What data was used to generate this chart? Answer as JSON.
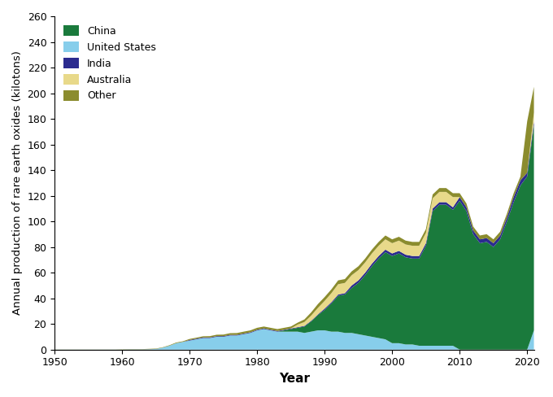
{
  "xlabel": "Year",
  "ylabel": "Annual production of rare earth oxides (kilotons)",
  "ylim": [
    0,
    260
  ],
  "yticks": [
    0,
    20,
    40,
    60,
    80,
    100,
    120,
    140,
    160,
    180,
    200,
    220,
    240,
    260
  ],
  "xlim": [
    1950,
    2021
  ],
  "xticks": [
    1950,
    1960,
    1970,
    1980,
    1990,
    2000,
    2010,
    2020
  ],
  "colors": {
    "United_States": "#87CEEB",
    "China": "#1a7a3c",
    "India": "#2b2b8f",
    "Australia": "#e8d98a",
    "Other": "#8b8c2e"
  },
  "years": [
    1950,
    1951,
    1952,
    1953,
    1954,
    1955,
    1956,
    1957,
    1958,
    1959,
    1960,
    1961,
    1962,
    1963,
    1964,
    1965,
    1966,
    1967,
    1968,
    1969,
    1970,
    1971,
    1972,
    1973,
    1974,
    1975,
    1976,
    1977,
    1978,
    1979,
    1980,
    1981,
    1982,
    1983,
    1984,
    1985,
    1986,
    1987,
    1988,
    1989,
    1990,
    1991,
    1992,
    1993,
    1994,
    1995,
    1996,
    1997,
    1998,
    1999,
    2000,
    2001,
    2002,
    2003,
    2004,
    2005,
    2006,
    2007,
    2008,
    2009,
    2010,
    2011,
    2012,
    2013,
    2014,
    2015,
    2016,
    2017,
    2018,
    2019,
    2020,
    2021
  ],
  "United_States": [
    0.1,
    0.1,
    0.1,
    0.1,
    0.1,
    0.1,
    0.1,
    0.1,
    0.1,
    0.1,
    0.1,
    0.2,
    0.2,
    0.2,
    0.3,
    0.5,
    1.5,
    3,
    5,
    6,
    7,
    8,
    9,
    9,
    10,
    10,
    11,
    11,
    12,
    13,
    15,
    16,
    15,
    14,
    14,
    14,
    14,
    13,
    14,
    15,
    15,
    14,
    14,
    13,
    13,
    12,
    11,
    10,
    9,
    8,
    5,
    5,
    4,
    4,
    3,
    3,
    3,
    3,
    3,
    3,
    0,
    0,
    0,
    0,
    0,
    0,
    0,
    0,
    0,
    0,
    0,
    15
  ],
  "China": [
    0,
    0,
    0,
    0,
    0,
    0,
    0,
    0,
    0,
    0,
    0,
    0,
    0,
    0,
    0,
    0,
    0,
    0,
    0,
    0,
    0,
    0,
    0,
    0,
    0,
    0,
    0,
    0,
    0,
    0,
    0,
    0,
    0,
    0,
    1,
    2,
    3,
    5,
    8,
    12,
    16,
    22,
    28,
    30,
    35,
    40,
    47,
    55,
    62,
    68,
    68,
    70,
    68,
    67,
    68,
    78,
    105,
    110,
    110,
    106,
    116,
    108,
    90,
    83,
    84,
    80,
    86,
    100,
    115,
    128,
    135,
    160
  ],
  "India": [
    0,
    0,
    0,
    0,
    0,
    0,
    0,
    0,
    0,
    0,
    0,
    0,
    0,
    0,
    0,
    0,
    0,
    0,
    0,
    0,
    0.5,
    0.5,
    0.5,
    0.5,
    0.5,
    0.5,
    0.5,
    0.5,
    0.5,
    0.5,
    0.5,
    0.5,
    0.5,
    0.5,
    0.5,
    0.5,
    0.5,
    0.5,
    0.5,
    0.5,
    1,
    1,
    1,
    1,
    2,
    2,
    2,
    2,
    2,
    2,
    2,
    2,
    2,
    2,
    2,
    2,
    2,
    2,
    2,
    2,
    3,
    3,
    3,
    3,
    3,
    3,
    3,
    3,
    4,
    4,
    3,
    3
  ],
  "Australia": [
    0,
    0,
    0,
    0,
    0,
    0,
    0,
    0,
    0,
    0,
    0,
    0,
    0,
    0,
    0,
    0,
    0,
    0,
    0,
    0,
    0,
    0,
    0,
    0,
    0,
    0,
    0,
    0,
    0,
    0,
    0,
    0,
    0,
    0,
    0,
    0,
    2,
    3,
    4,
    5,
    6,
    7,
    8,
    8,
    8,
    8,
    8,
    8,
    8,
    8,
    8,
    8,
    8,
    8,
    8,
    8,
    8,
    8,
    8,
    8,
    0,
    0,
    0,
    0,
    0,
    0,
    0,
    0,
    0,
    0,
    0,
    7
  ],
  "Other": [
    0.1,
    0.1,
    0.1,
    0.1,
    0.1,
    0.1,
    0.1,
    0.1,
    0.1,
    0.1,
    0.2,
    0.2,
    0.2,
    0.2,
    0.3,
    0.3,
    0.3,
    0.4,
    0.5,
    0.5,
    0.8,
    0.8,
    0.9,
    1.0,
    1.1,
    1.2,
    1.3,
    1.4,
    1.5,
    1.5,
    1.5,
    1.5,
    1.5,
    1.5,
    1.5,
    1.5,
    1.5,
    2,
    2.5,
    3,
    3,
    3,
    3,
    3,
    3,
    3,
    3,
    3,
    3,
    3,
    3,
    3,
    3,
    3,
    3,
    3,
    3,
    3,
    3,
    3,
    3,
    3,
    3,
    3,
    3,
    3,
    3,
    3,
    3,
    3,
    40,
    20
  ]
}
